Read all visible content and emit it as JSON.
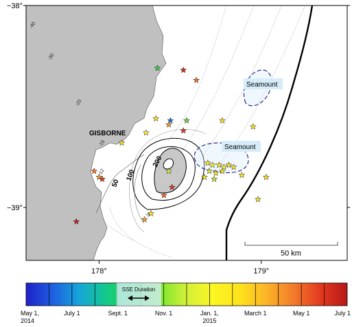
{
  "map": {
    "lat_ticks": [
      {
        "label": "−38°",
        "lat": -38.0
      },
      {
        "label": "−39°",
        "lat": -39.0
      }
    ],
    "lon_ticks": [
      {
        "label": "178°",
        "lon": 178.0
      },
      {
        "label": "179°",
        "lon": 179.0
      }
    ],
    "place_label": "GISBORNE",
    "seamount_labels": [
      "Seamount",
      "Seamount"
    ],
    "scale_bar_label": "50 km",
    "contour_labels": [
      "-40",
      "-30",
      "-20",
      "-15",
      "-12",
      "50",
      "100",
      "200",
      "-9"
    ],
    "land_color": "#c0c0c0",
    "slip_patch_color": "#c8c8c8",
    "trench_color": "#000000",
    "seamount_outline_color": "#2a2a8a",
    "seamount_highlight_color": "#d6ecf8"
  },
  "events": [
    {
      "lon": 178.76,
      "lat": -38.57,
      "color": "#fbe21a"
    },
    {
      "lon": 178.95,
      "lat": -38.6,
      "color": "#fbe21a"
    },
    {
      "lon": 178.29,
      "lat": -38.63,
      "color": "#fef221"
    },
    {
      "lon": 178.36,
      "lat": -38.31,
      "color": "#2fd64a"
    },
    {
      "lon": 178.52,
      "lat": -38.32,
      "color": "#d62b1c"
    },
    {
      "lon": 178.6,
      "lat": -38.37,
      "color": "#f36d2a"
    },
    {
      "lon": 178.35,
      "lat": -38.56,
      "color": "#fbe71c"
    },
    {
      "lon": 178.44,
      "lat": -38.57,
      "color": "#2575d8"
    },
    {
      "lon": 178.43,
      "lat": -38.59,
      "color": "#f29a2c"
    },
    {
      "lon": 178.54,
      "lat": -38.57,
      "color": "#6bd646"
    },
    {
      "lon": 178.52,
      "lat": -38.62,
      "color": "#e5381f"
    },
    {
      "lon": 178.14,
      "lat": -38.68,
      "color": "#fbe51d"
    },
    {
      "lon": 177.97,
      "lat": -38.82,
      "color": "#f27b2b"
    },
    {
      "lon": 178.0,
      "lat": -38.85,
      "color": "#f99a2b"
    },
    {
      "lon": 178.02,
      "lat": -38.86,
      "color": "#e23a20"
    },
    {
      "lon": 178.43,
      "lat": -38.82,
      "color": "#d9f241"
    },
    {
      "lon": 178.45,
      "lat": -38.9,
      "color": "#e23a20"
    },
    {
      "lon": 178.4,
      "lat": -38.94,
      "color": "#f26a2a"
    },
    {
      "lon": 178.32,
      "lat": -39.03,
      "color": "#fbe61b"
    },
    {
      "lon": 178.28,
      "lat": -39.06,
      "color": "#f9a02d"
    },
    {
      "lon": 177.86,
      "lat": -39.07,
      "color": "#d02019"
    },
    {
      "lon": 178.67,
      "lat": -38.78,
      "color": "#fdea1e"
    },
    {
      "lon": 178.7,
      "lat": -38.79,
      "color": "#fff22a"
    },
    {
      "lon": 178.74,
      "lat": -38.79,
      "color": "#f8e61c"
    },
    {
      "lon": 178.77,
      "lat": -38.8,
      "color": "#fef128"
    },
    {
      "lon": 178.8,
      "lat": -38.79,
      "color": "#fbe01a"
    },
    {
      "lon": 178.83,
      "lat": -38.8,
      "color": "#f9e81f"
    },
    {
      "lon": 178.68,
      "lat": -38.82,
      "color": "#d8f040"
    },
    {
      "lon": 178.72,
      "lat": -38.83,
      "color": "#fbe91d"
    },
    {
      "lon": 178.76,
      "lat": -38.82,
      "color": "#f7e31b"
    },
    {
      "lon": 178.71,
      "lat": -38.86,
      "color": "#bfe83a"
    },
    {
      "lon": 178.65,
      "lat": -38.85,
      "color": "#fde51c"
    },
    {
      "lon": 178.88,
      "lat": -38.84,
      "color": "#fbe41b"
    },
    {
      "lon": 179.03,
      "lat": -38.85,
      "color": "#fbe11a"
    },
    {
      "lon": 178.98,
      "lat": -38.96,
      "color": "#f6e41c"
    }
  ],
  "colorbar": {
    "stops": [
      "#1f1fc8",
      "#1e5fe0",
      "#17a6d9",
      "#14c98a",
      "#21d941",
      "#7ae52e",
      "#d4f03a",
      "#fcf623",
      "#fde21c",
      "#fcb328",
      "#f27b2b",
      "#e3391f",
      "#b51818"
    ],
    "inset_label": "SSE Duration",
    "tick_labels": [
      {
        "line1": "May 1,",
        "line2": "2014"
      },
      {
        "line1": "July 1",
        "line2": ""
      },
      {
        "line1": "Sept. 1",
        "line2": ""
      },
      {
        "line1": "Nov. 1",
        "line2": ""
      },
      {
        "line1": "Jan. 1,",
        "line2": "2015"
      },
      {
        "line1": "March 1",
        "line2": ""
      },
      {
        "line1": "May 1",
        "line2": ""
      },
      {
        "line1": "July 1",
        "line2": ""
      }
    ]
  }
}
